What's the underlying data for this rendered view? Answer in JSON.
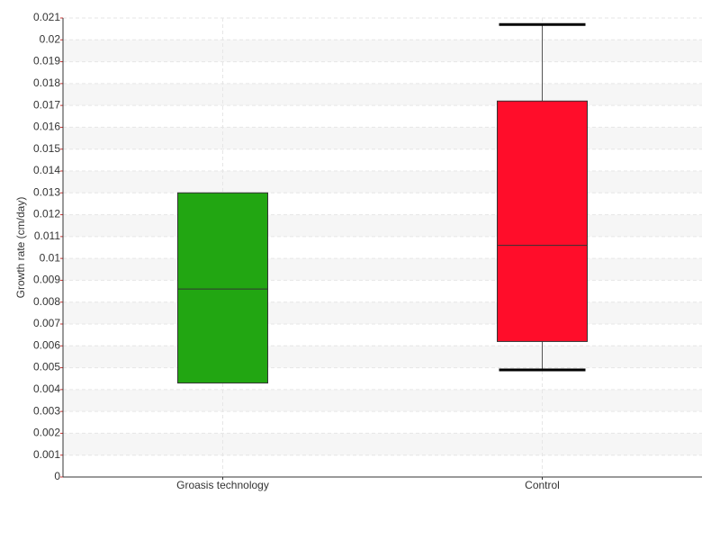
{
  "chart_data": {
    "type": "box",
    "y_label": "Growth rate (cm/day)",
    "categories": [
      "Groasis technology",
      "Control"
    ],
    "boxes": [
      {
        "min": null,
        "q1": 0.0043,
        "median": 0.0086,
        "q3": 0.013,
        "max": null,
        "color": "#22a612"
      },
      {
        "min": 0.0049,
        "q1": 0.0062,
        "median": 0.0106,
        "q3": 0.0172,
        "max": 0.0207,
        "color": "#ff0d2a"
      }
    ],
    "ylim": [
      0,
      0.021
    ],
    "yticks": [
      0,
      0.001,
      0.002,
      0.003,
      0.004,
      0.005,
      0.006,
      0.007,
      0.008,
      0.009,
      0.01,
      0.011,
      0.012,
      0.013,
      0.014,
      0.015,
      0.016,
      0.017,
      0.018,
      0.019,
      0.02,
      0.021
    ],
    "grid": true
  }
}
